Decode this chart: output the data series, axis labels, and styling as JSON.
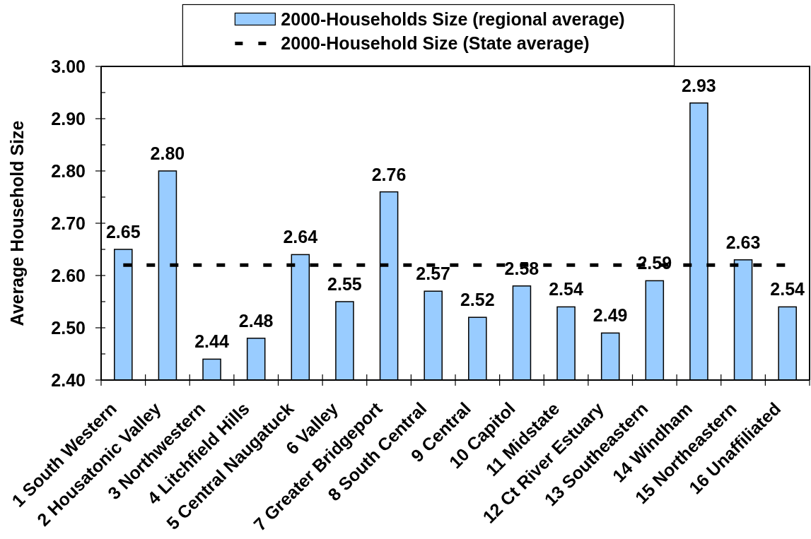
{
  "chart_data": {
    "type": "bar",
    "ylabel": "Average Household Size",
    "categories": [
      "1 South Western",
      "2 Housatonic Valley",
      "3 Northwestern",
      "4 Litchfield Hills",
      "5 Central Naugatuck",
      "6 Valley",
      "7 Greater Bridgeport",
      "8 South Central",
      "9 Central",
      "10 Capitol",
      "11 Midstate",
      "12 Ct River Estuary",
      "13 Southeastern",
      "14 Windham",
      "15 Northeastern",
      "16 Unaffiliated"
    ],
    "series": [
      {
        "name": "2000-Households Size (regional average)",
        "color": "#99ccff",
        "values": [
          2.65,
          2.8,
          2.44,
          2.48,
          2.64,
          2.55,
          2.76,
          2.57,
          2.52,
          2.58,
          2.54,
          2.49,
          2.59,
          2.93,
          2.63,
          2.54
        ],
        "value_labels": [
          "2.65",
          "2.80",
          "2.44",
          "2.48",
          "2.64",
          "2.55",
          "2.76",
          "2.57",
          "2.52",
          "2.58",
          "2.54",
          "2.49",
          "2.59",
          "2.93",
          "2.63",
          "2.54"
        ]
      },
      {
        "name": "2000-Household Size (State average)",
        "type": "line",
        "color": "#000000",
        "values": [
          2.62,
          2.62,
          2.62,
          2.62,
          2.62,
          2.62,
          2.62,
          2.62,
          2.62,
          2.62,
          2.62,
          2.62,
          2.62,
          2.62,
          2.62,
          2.62
        ],
        "line_style": "dashed",
        "marker": "none"
      }
    ],
    "ylim": [
      2.4,
      3.0
    ],
    "yticks": [
      {
        "value": 2.4,
        "label": "2.40"
      },
      {
        "value": 2.45,
        "label": null
      },
      {
        "value": 2.5,
        "label": "2.50"
      },
      {
        "value": 2.55,
        "label": null
      },
      {
        "value": 2.6,
        "label": "2.60"
      },
      {
        "value": 2.65,
        "label": null
      },
      {
        "value": 2.7,
        "label": "2.70"
      },
      {
        "value": 2.75,
        "label": null
      },
      {
        "value": 2.8,
        "label": "2.80"
      },
      {
        "value": 2.85,
        "label": null
      },
      {
        "value": 2.9,
        "label": "2.90"
      },
      {
        "value": 2.95,
        "label": null
      },
      {
        "value": 3.0,
        "label": "3.00"
      }
    ],
    "grid": false,
    "legend": "top"
  }
}
